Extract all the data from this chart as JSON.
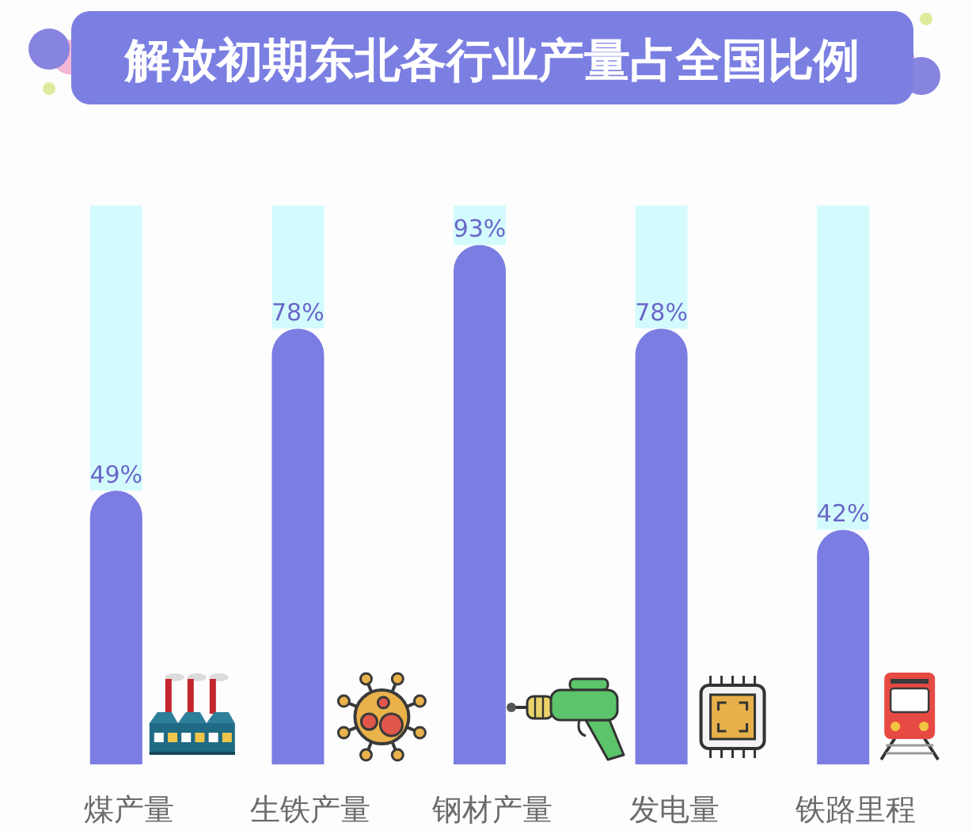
{
  "chart_data": {
    "type": "bar",
    "title": "解放初期东北各行业产量占全国比例",
    "categories": [
      "煤产量",
      "生铁产量",
      "钢材产量",
      "发电量",
      "铁路里程"
    ],
    "stacked": true,
    "series": [
      {
        "color": "#7b7de2",
        "values": [
          49,
          78,
          93,
          78,
          42
        ],
        "value_labels": [
          "49%",
          "78%",
          "93%",
          "78%",
          "42%"
        ]
      },
      {
        "color": "#d3fbfd",
        "values": [
          51,
          22,
          7,
          22,
          58
        ]
      }
    ],
    "ylim": [
      0,
      100
    ],
    "tick_labels": "x"
  }
}
